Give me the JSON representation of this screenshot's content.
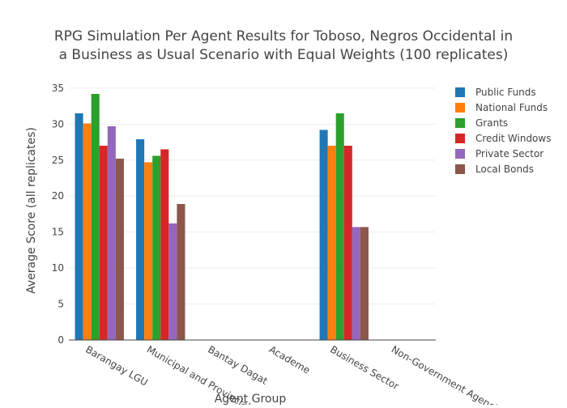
{
  "chart_data": {
    "type": "bar",
    "title_lines": [
      "RPG Simulation Per Agent Results for Toboso, Negros Occidental in",
      "a Business as Usual Scenario with Equal Weights (100 replicates)"
    ],
    "xlabel": "Agent Group",
    "ylabel": "Average Score (all replicates)",
    "ylim": [
      0,
      36
    ],
    "yticks": [
      0,
      5,
      10,
      15,
      20,
      25,
      30,
      35
    ],
    "grid": true,
    "legend_position": "top-right",
    "categories": [
      "Barangay LGU",
      "Municipal and Provincial LGU",
      "Bantay Dagat",
      "Academe",
      "Business Sector",
      "Non-Government Agencies"
    ],
    "series": [
      {
        "name": "Public Funds",
        "color": "#1f77b4",
        "values": [
          31.5,
          27.9,
          0,
          0,
          29.2,
          0
        ]
      },
      {
        "name": "National Funds",
        "color": "#ff7f0e",
        "values": [
          30.1,
          24.7,
          0,
          0,
          27.0,
          0
        ]
      },
      {
        "name": "Grants",
        "color": "#2ca02c",
        "values": [
          34.2,
          25.6,
          0,
          0,
          31.5,
          0
        ]
      },
      {
        "name": "Credit Windows",
        "color": "#d62728",
        "values": [
          27.0,
          26.5,
          0,
          0,
          27.0,
          0
        ]
      },
      {
        "name": "Private Sector",
        "color": "#9467bd",
        "values": [
          29.7,
          16.2,
          0,
          0,
          15.7,
          0
        ]
      },
      {
        "name": "Local Bonds",
        "color": "#8c564b",
        "values": [
          25.2,
          18.9,
          0,
          0,
          15.7,
          0
        ]
      }
    ]
  }
}
